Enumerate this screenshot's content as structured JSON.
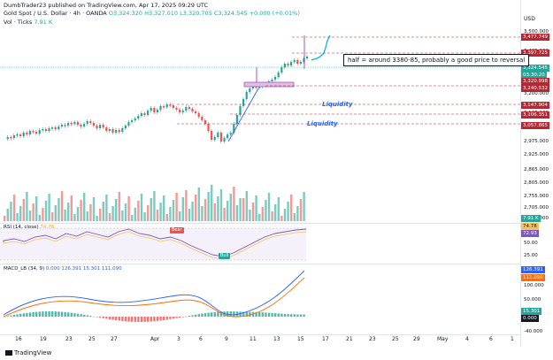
{
  "header": {
    "published": "DumbTrader23 published on TradingView.com, Apr 17, 2025 09:29 UTC",
    "symbol": "Gold Spot / U.S. Dollar · 4h · OANDA",
    "ohlc": "O3,324.320  H3,327.010  L3,320.705  C3,324.545  +0.000 (+0.01%)",
    "vol_label": "Vol · Ticks",
    "vol_value": "7.91 K"
  },
  "currency": "USD",
  "price_ticks": [
    "3,500.000",
    "3,425.000",
    "3,275.000",
    "3,200.000",
    "3,125.000",
    "3,050.000",
    "2,975.000",
    "2,925.000",
    "2,865.000",
    "2,805.000",
    "2,755.000",
    "2,705.000",
    "2,650.000"
  ],
  "price_tags": [
    {
      "text": "3,477.749",
      "color": "#b22833"
    },
    {
      "text": "3,397.725",
      "color": "#b22833"
    },
    {
      "text": "3,324.545",
      "color": "#26a69a"
    },
    {
      "text": "03:30:20",
      "color": "#26a69a"
    },
    {
      "text": "3,320.998",
      "color": "#b22833"
    },
    {
      "text": "3,240.532",
      "color": "#b22833"
    },
    {
      "text": "3,147.904",
      "color": "#b22833"
    },
    {
      "text": "3,106.351",
      "color": "#b22833"
    },
    {
      "text": "3,057.865",
      "color": "#b22833"
    }
  ],
  "annotation": "half = around 3380-85, probably a good price to reversal",
  "liquidity_labels": [
    "Liquidity",
    "Liquidity"
  ],
  "volume_tag": "7.91 K",
  "rsi": {
    "label": "RSI (14, close)",
    "values_text": "74.78",
    "tag_a": "74.78",
    "tag_b": "72.93",
    "tick_50": "50.00",
    "tick_25": "25.00",
    "bear": "Bear",
    "bull": "Bull"
  },
  "macd": {
    "label": "MACD_LB (34, 9)",
    "values": "0.000  126.391  15.301  111.090",
    "tags": [
      "126.391",
      "111.090",
      "15.301",
      "0.000"
    ],
    "ticks": [
      "100.000",
      "50.000",
      "-40.000"
    ]
  },
  "time_labels": [
    "16",
    "19",
    "23",
    "25",
    "27",
    "Apr",
    "3",
    "6",
    "9",
    "11",
    "13",
    "15",
    "17",
    "21",
    "23",
    "25",
    "29",
    "May",
    "4",
    "6",
    "1"
  ],
  "footer": "TradingView",
  "colors": {
    "up": "#26a69a",
    "down": "#ef5350",
    "level": "#b22833",
    "accent": "#2962ff",
    "purple": "#9c27b0"
  }
}
